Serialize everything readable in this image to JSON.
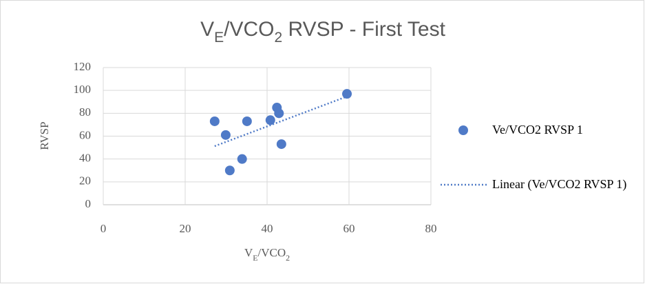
{
  "chart_data": {
    "type": "scatter",
    "title": [
      {
        "text": "V"
      },
      {
        "text": "E",
        "sub": true
      },
      {
        "text": "/VCO"
      },
      {
        "text": "2",
        "sub": true
      },
      {
        "text": " RVSP - First Test"
      }
    ],
    "x_label": [
      {
        "text": "V"
      },
      {
        "text": "E",
        "sub": true
      },
      {
        "text": "/VCO"
      },
      {
        "text": "2",
        "sub": true
      }
    ],
    "y_label": "RVSP",
    "series": [
      {
        "name": "Ve/VCO2 RVSP 1",
        "color": "#4f7ac7",
        "x": [
          27.2,
          29.9,
          30.9,
          33.9,
          35.1,
          40.8,
          42.4,
          42.9,
          43.5,
          59.5
        ],
        "values": [
          73,
          61,
          30,
          40,
          73,
          74,
          85,
          80,
          53,
          97
        ]
      }
    ],
    "trendline": {
      "type": "linear",
      "name": "Linear (Ve/VCO2 RVSP 1)",
      "color": "#4f7ac7",
      "dashed": true
    },
    "xlim": [
      0,
      80
    ],
    "xticks": [
      0,
      20,
      40,
      60,
      80
    ],
    "ylim": [
      0,
      120
    ],
    "yticks": [
      0,
      20,
      40,
      60,
      80,
      100,
      120
    ],
    "grid": true,
    "legend": "right"
  }
}
